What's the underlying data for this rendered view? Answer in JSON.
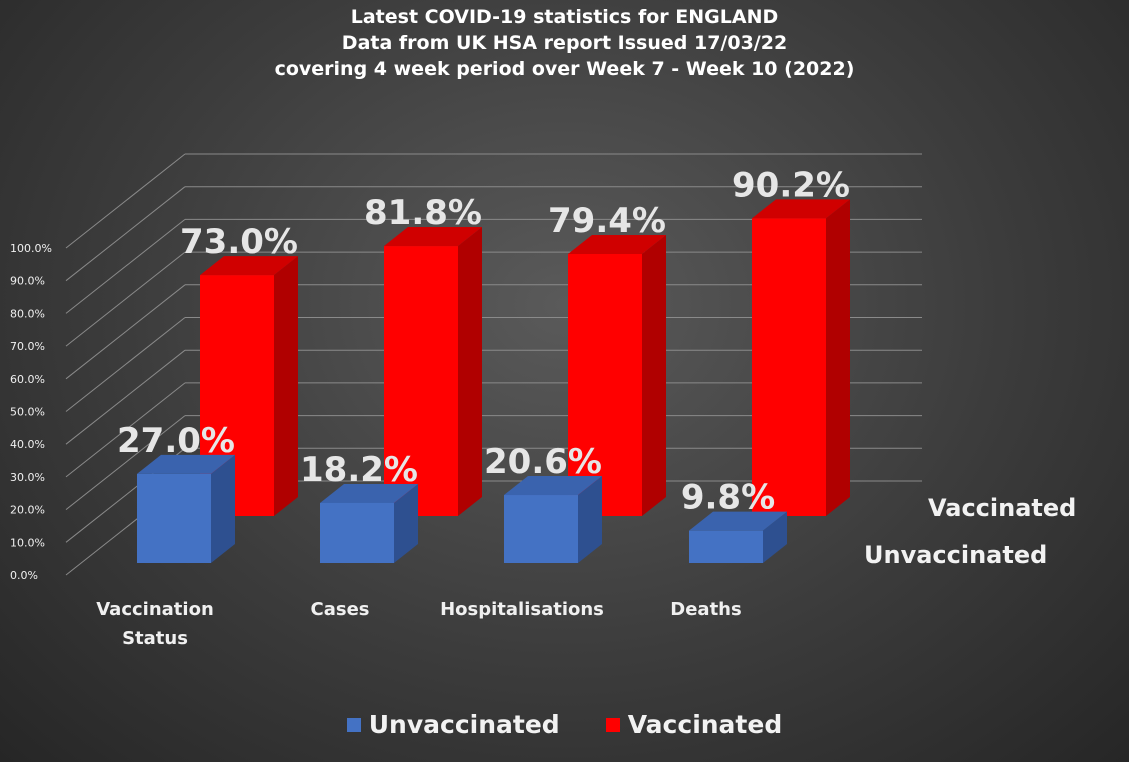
{
  "title_lines": [
    "Latest COVID-19 statistics for ENGLAND",
    "Data from UK HSA report Issued 17/03/22",
    "covering 4 week period over Week 7 - Week 10 (2022)"
  ],
  "colors": {
    "unvaccinated": "#4472C4",
    "vaccinated": "#FF0000"
  },
  "chart_data": {
    "type": "bar",
    "title": "Latest COVID-19 statistics for ENGLAND",
    "subtitle": "Data from UK HSA report Issued 17/03/22 covering 4 week period over Week 7 - Week 10 (2022)",
    "categories": [
      "Vaccination Status",
      "Cases",
      "Hospitalisations",
      "Deaths"
    ],
    "series": [
      {
        "name": "Unvaccinated",
        "values": [
          27.0,
          18.2,
          20.6,
          9.8
        ],
        "labels": [
          "27.0%",
          "18.2%",
          "20.6%",
          "9.8%"
        ]
      },
      {
        "name": "Vaccinated",
        "values": [
          73.0,
          81.8,
          79.4,
          90.2
        ],
        "labels": [
          "73.0%",
          "81.8%",
          "79.4%",
          "90.2%"
        ]
      }
    ],
    "yticks": [
      "0.0%",
      "10.0%",
      "20.0%",
      "30.0%",
      "40.0%",
      "50.0%",
      "60.0%",
      "70.0%",
      "80.0%",
      "90.0%",
      "100.0%"
    ],
    "ylim": [
      0,
      100
    ],
    "depth_labels": [
      "Unvaccinated",
      "Vaccinated"
    ],
    "legend_position": "bottom",
    "grid": true,
    "style": "3d-column"
  }
}
